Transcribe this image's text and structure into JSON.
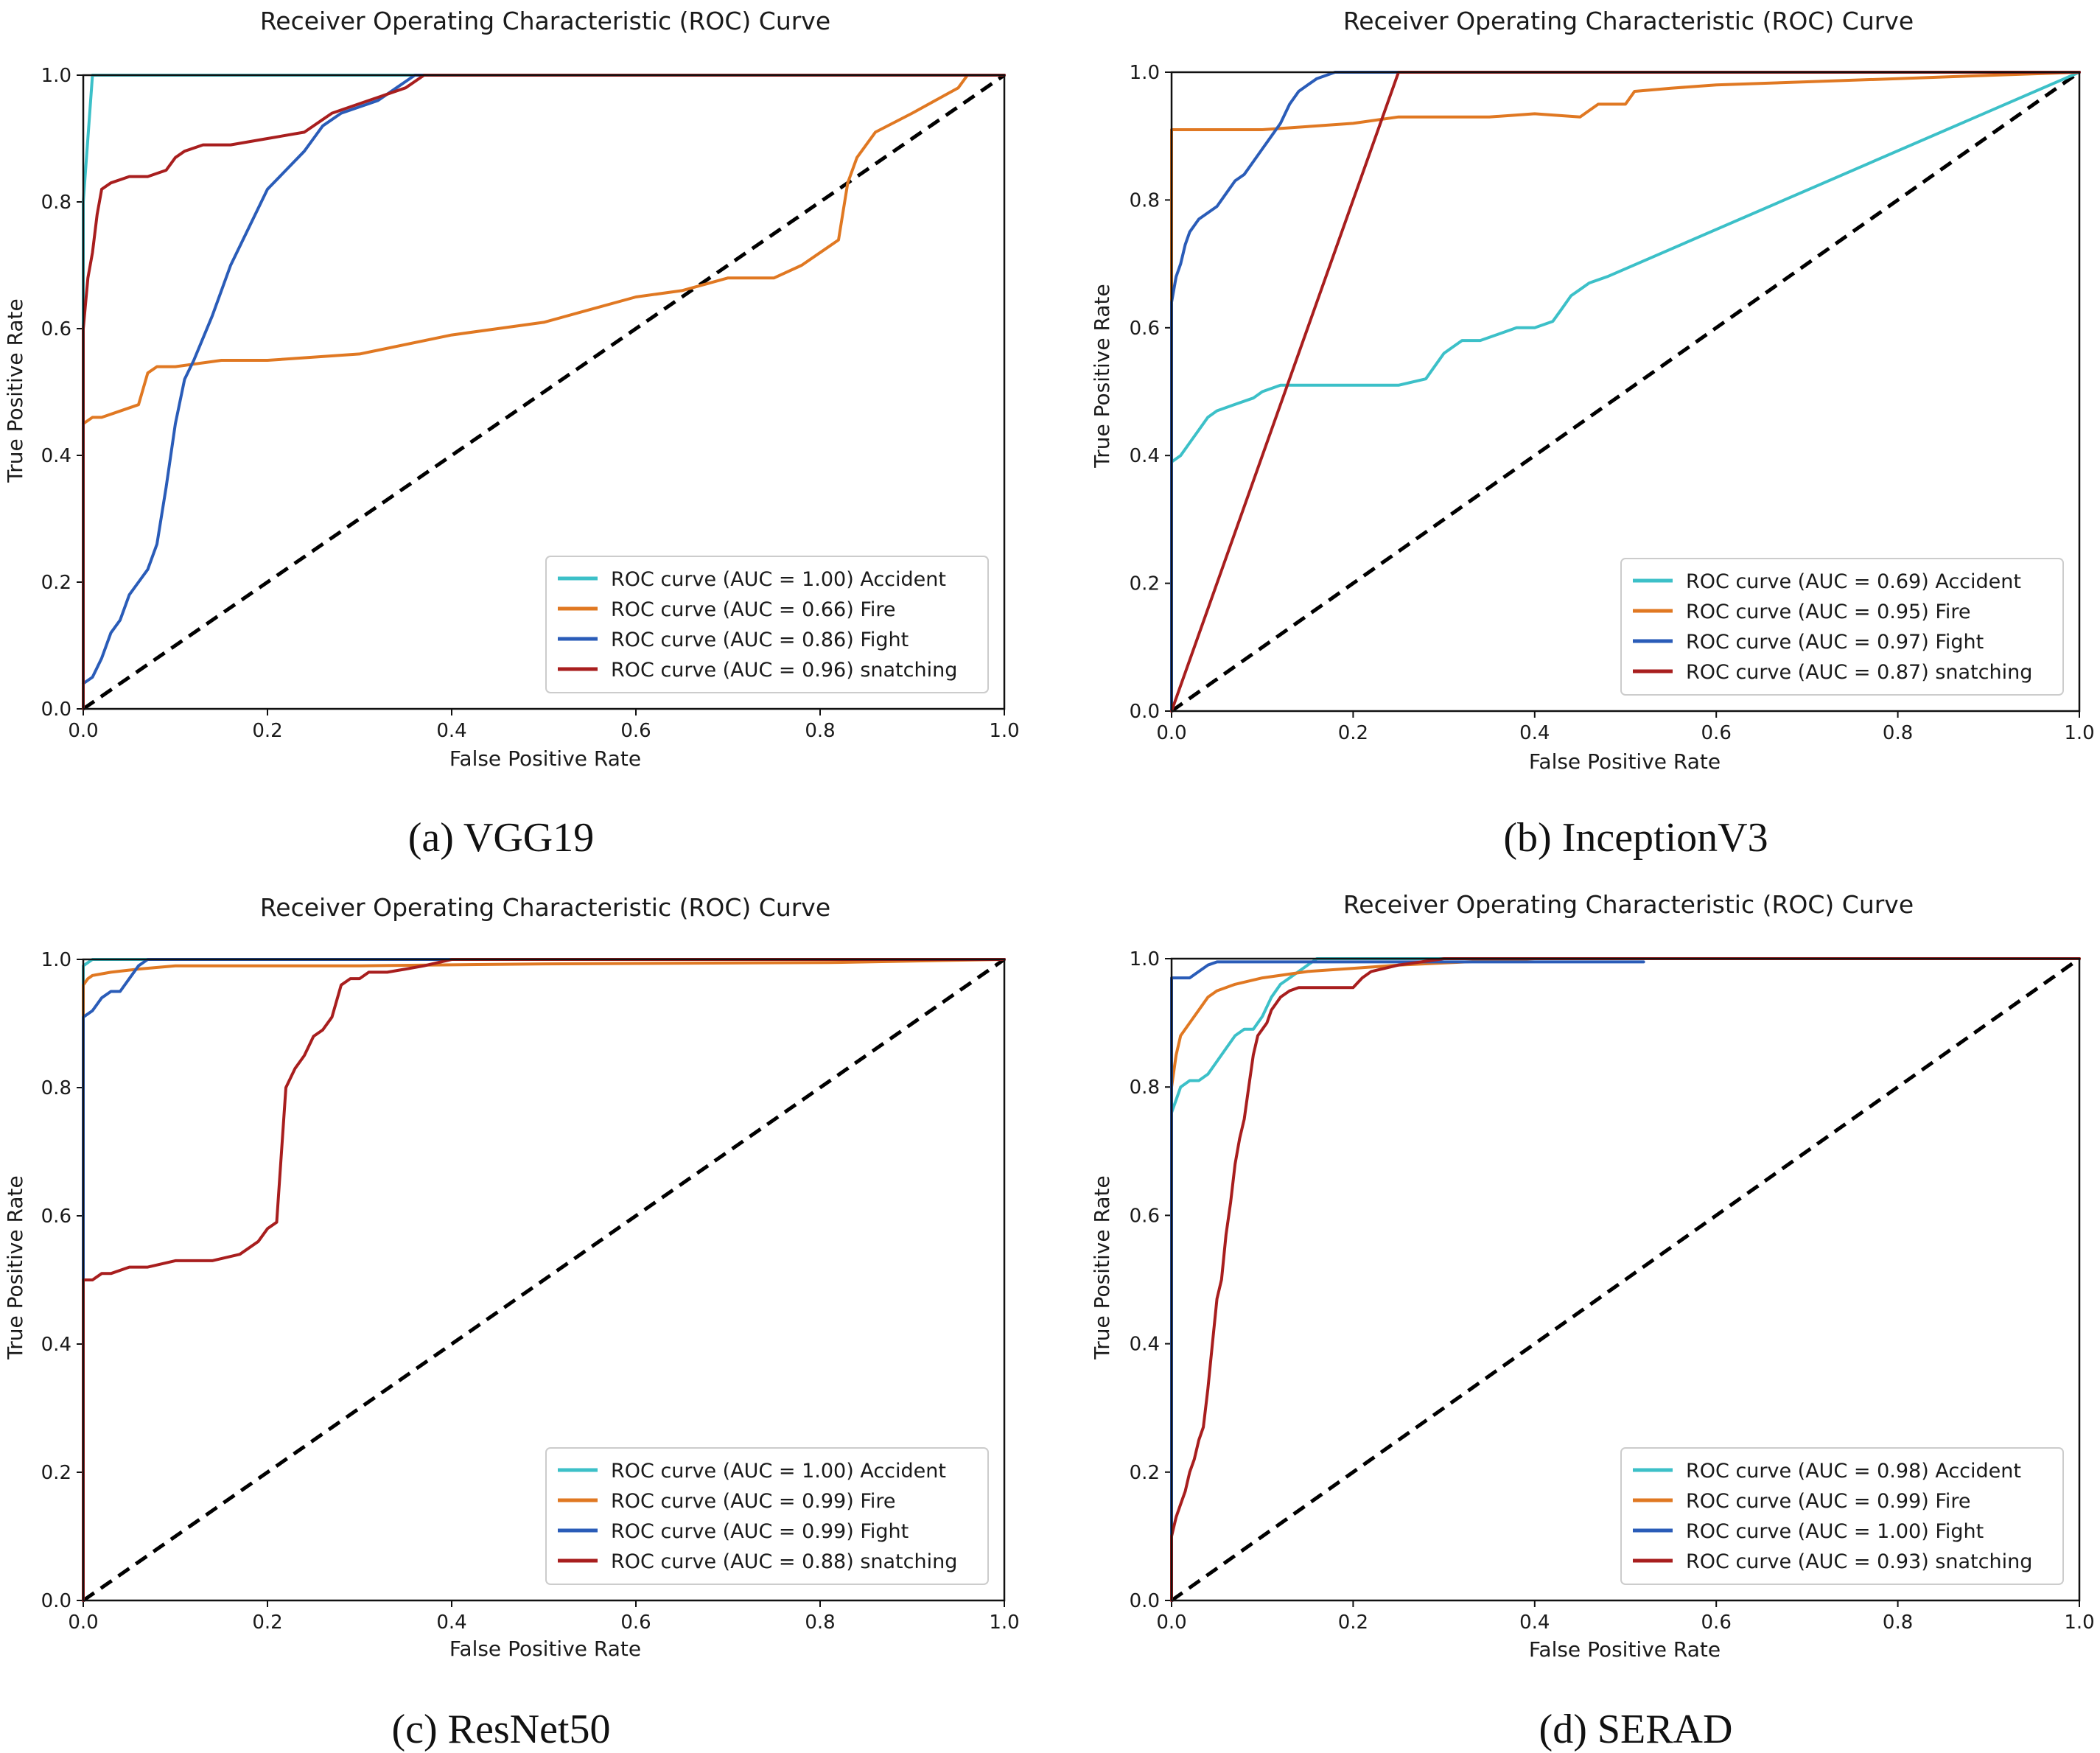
{
  "figure": {
    "background": "#ffffff",
    "series_styles": {
      "Accident": "#3cc0c8",
      "Fire": "#e07822",
      "Fight": "#2a5cb8",
      "snatching": "#a81e1e"
    }
  },
  "chart_data": [
    {
      "id": "a",
      "type": "line",
      "caption": "(a) VGG19",
      "title": "Receiver Operating Characteristic (ROC) Curve",
      "xlabel": "False Positive Rate",
      "ylabel": "True Positive Rate",
      "xlim": [
        0,
        1
      ],
      "ylim": [
        0,
        1
      ],
      "xticks": [
        "0.0",
        "0.2",
        "0.4",
        "0.6",
        "0.8",
        "1.0"
      ],
      "yticks": [
        "0.0",
        "0.2",
        "0.4",
        "0.6",
        "0.8",
        "1.0"
      ],
      "legend_position": "lower-right",
      "series": [
        {
          "name": "Accident",
          "legend": "ROC curve (AUC = 1.00) Accident",
          "auc": 1.0,
          "x": [
            0,
            0,
            0.01,
            0.37,
            1.0
          ],
          "y": [
            0,
            0.8,
            1.0,
            1.0,
            1.0
          ]
        },
        {
          "name": "Fire",
          "legend": "ROC curve (AUC = 0.66) Fire",
          "auc": 0.66,
          "x": [
            0,
            0.01,
            0.02,
            0.04,
            0.06,
            0.07,
            0.08,
            0.1,
            0.15,
            0.2,
            0.3,
            0.4,
            0.45,
            0.5,
            0.55,
            0.6,
            0.65,
            0.7,
            0.75,
            0.78,
            0.8,
            0.82,
            0.83,
            0.84,
            0.86,
            0.9,
            0.95,
            0.96,
            1.0
          ],
          "y": [
            0.45,
            0.46,
            0.46,
            0.47,
            0.48,
            0.53,
            0.54,
            0.54,
            0.55,
            0.55,
            0.56,
            0.59,
            0.6,
            0.61,
            0.63,
            0.65,
            0.66,
            0.68,
            0.68,
            0.7,
            0.72,
            0.74,
            0.83,
            0.87,
            0.91,
            0.94,
            0.98,
            1.0,
            1.0
          ]
        },
        {
          "name": "Fight",
          "legend": "ROC curve (AUC = 0.86) Fight",
          "auc": 0.86,
          "x": [
            0,
            0.01,
            0.02,
            0.03,
            0.04,
            0.05,
            0.06,
            0.07,
            0.08,
            0.09,
            0.1,
            0.11,
            0.12,
            0.14,
            0.16,
            0.18,
            0.2,
            0.22,
            0.24,
            0.25,
            0.26,
            0.28,
            0.3,
            0.32,
            0.34,
            0.35,
            0.36,
            0.38,
            1.0
          ],
          "y": [
            0.04,
            0.05,
            0.08,
            0.12,
            0.14,
            0.18,
            0.2,
            0.22,
            0.26,
            0.35,
            0.45,
            0.52,
            0.55,
            0.62,
            0.7,
            0.76,
            0.82,
            0.85,
            0.88,
            0.9,
            0.92,
            0.94,
            0.95,
            0.96,
            0.98,
            0.99,
            1.0,
            1.0,
            1.0
          ]
        },
        {
          "name": "snatching",
          "legend": "ROC curve (AUC = 0.96) snatching",
          "auc": 0.96,
          "x": [
            0,
            0,
            0.005,
            0.01,
            0.015,
            0.02,
            0.03,
            0.05,
            0.07,
            0.09,
            0.1,
            0.11,
            0.13,
            0.16,
            0.2,
            0.24,
            0.26,
            0.27,
            0.29,
            0.31,
            0.33,
            0.35,
            0.37,
            1.0
          ],
          "y": [
            0,
            0.6,
            0.68,
            0.72,
            0.78,
            0.82,
            0.83,
            0.84,
            0.84,
            0.85,
            0.87,
            0.88,
            0.89,
            0.89,
            0.9,
            0.91,
            0.93,
            0.94,
            0.95,
            0.96,
            0.97,
            0.98,
            1.0,
            1.0
          ]
        }
      ]
    },
    {
      "id": "b",
      "type": "line",
      "caption": "(b) InceptionV3",
      "title": "Receiver Operating Characteristic (ROC) Curve",
      "xlabel": "False Positive Rate",
      "ylabel": "True Positive Rate",
      "xlim": [
        0,
        1
      ],
      "ylim": [
        0,
        1
      ],
      "xticks": [
        "0.0",
        "0.2",
        "0.4",
        "0.6",
        "0.8",
        "1.0"
      ],
      "yticks": [
        "0.0",
        "0.2",
        "0.4",
        "0.6",
        "0.8",
        "1.0"
      ],
      "legend_position": "lower-right",
      "series": [
        {
          "name": "Accident",
          "legend": "ROC curve (AUC = 0.69) Accident",
          "auc": 0.69,
          "x": [
            0,
            0,
            0.01,
            0.02,
            0.03,
            0.04,
            0.05,
            0.07,
            0.09,
            0.1,
            0.12,
            0.16,
            0.2,
            0.25,
            0.28,
            0.29,
            0.3,
            0.31,
            0.32,
            0.34,
            0.36,
            0.38,
            0.4,
            0.42,
            0.43,
            0.44,
            0.45,
            0.46,
            0.48,
            1.0
          ],
          "y": [
            0,
            0.39,
            0.4,
            0.42,
            0.44,
            0.46,
            0.47,
            0.48,
            0.49,
            0.5,
            0.51,
            0.51,
            0.51,
            0.51,
            0.52,
            0.54,
            0.56,
            0.57,
            0.58,
            0.58,
            0.59,
            0.6,
            0.6,
            0.61,
            0.63,
            0.65,
            0.66,
            0.67,
            0.68,
            1.0
          ]
        },
        {
          "name": "Fire",
          "legend": "ROC curve (AUC = 0.95) Fire",
          "auc": 0.95,
          "x": [
            0,
            0,
            0.05,
            0.1,
            0.15,
            0.2,
            0.25,
            0.3,
            0.35,
            0.4,
            0.45,
            0.47,
            0.5,
            0.51,
            0.55,
            0.6,
            0.7,
            0.8,
            0.9,
            1.0
          ],
          "y": [
            0,
            0.91,
            0.91,
            0.91,
            0.915,
            0.92,
            0.93,
            0.93,
            0.93,
            0.935,
            0.93,
            0.95,
            0.95,
            0.97,
            0.975,
            0.98,
            0.985,
            0.99,
            0.995,
            1.0
          ]
        },
        {
          "name": "Fight",
          "legend": "ROC curve (AUC = 0.97) Fight",
          "auc": 0.97,
          "x": [
            0,
            0,
            0.005,
            0.01,
            0.015,
            0.02,
            0.03,
            0.04,
            0.05,
            0.06,
            0.07,
            0.08,
            0.09,
            0.1,
            0.11,
            0.12,
            0.13,
            0.14,
            0.15,
            0.16,
            0.18,
            0.2,
            1.0
          ],
          "y": [
            0,
            0.64,
            0.68,
            0.7,
            0.73,
            0.75,
            0.77,
            0.78,
            0.79,
            0.81,
            0.83,
            0.84,
            0.86,
            0.88,
            0.9,
            0.92,
            0.95,
            0.97,
            0.98,
            0.99,
            1.0,
            1.0,
            1.0
          ]
        },
        {
          "name": "snatching",
          "legend": "ROC curve (AUC = 0.87) snatching",
          "auc": 0.87,
          "x": [
            0,
            0.25,
            1.0
          ],
          "y": [
            0,
            1.0,
            1.0
          ]
        }
      ]
    },
    {
      "id": "c",
      "type": "line",
      "caption": "(c) ResNet50",
      "title": "Receiver Operating Characteristic (ROC) Curve",
      "xlabel": "False Positive Rate",
      "ylabel": "True Positive Rate",
      "xlim": [
        0,
        1
      ],
      "ylim": [
        0,
        1
      ],
      "xticks": [
        "0.0",
        "0.2",
        "0.4",
        "0.6",
        "0.8",
        "1.0"
      ],
      "yticks": [
        "0.0",
        "0.2",
        "0.4",
        "0.6",
        "0.8",
        "1.0"
      ],
      "legend_position": "lower-right",
      "series": [
        {
          "name": "Accident",
          "legend": "ROC curve (AUC = 1.00) Accident",
          "auc": 1.0,
          "x": [
            0,
            0,
            0.01,
            0.42,
            1.0
          ],
          "y": [
            0,
            0.99,
            1.0,
            1.0,
            1.0
          ]
        },
        {
          "name": "Fire",
          "legend": "ROC curve (AUC = 0.99) Fire",
          "auc": 0.99,
          "x": [
            0,
            0,
            0.005,
            0.01,
            0.03,
            0.06,
            0.1,
            0.2,
            0.3,
            0.5,
            0.81,
            1.0
          ],
          "y": [
            0,
            0.96,
            0.97,
            0.975,
            0.98,
            0.985,
            0.99,
            0.99,
            0.99,
            0.993,
            0.995,
            1.0
          ]
        },
        {
          "name": "Fight",
          "legend": "ROC curve (AUC = 0.99) Fight",
          "auc": 0.99,
          "x": [
            0,
            0,
            0.01,
            0.02,
            0.03,
            0.04,
            0.05,
            0.06,
            0.07,
            1.0
          ],
          "y": [
            0,
            0.91,
            0.92,
            0.94,
            0.95,
            0.95,
            0.97,
            0.99,
            1.0,
            1.0
          ]
        },
        {
          "name": "snatching",
          "legend": "ROC curve (AUC = 0.88) snatching",
          "auc": 0.88,
          "x": [
            0,
            0,
            0.01,
            0.02,
            0.03,
            0.05,
            0.07,
            0.1,
            0.14,
            0.17,
            0.19,
            0.2,
            0.21,
            0.22,
            0.23,
            0.24,
            0.25,
            0.26,
            0.27,
            0.28,
            0.29,
            0.3,
            0.31,
            0.33,
            0.35,
            0.37,
            0.4,
            1.0
          ],
          "y": [
            0,
            0.5,
            0.5,
            0.51,
            0.51,
            0.52,
            0.52,
            0.53,
            0.53,
            0.54,
            0.56,
            0.58,
            0.59,
            0.8,
            0.83,
            0.85,
            0.88,
            0.89,
            0.91,
            0.96,
            0.97,
            0.97,
            0.98,
            0.98,
            0.985,
            0.99,
            1.0,
            1.0
          ]
        }
      ]
    },
    {
      "id": "d",
      "type": "line",
      "caption": "(d) SERAD",
      "title": "Receiver Operating Characteristic (ROC) Curve",
      "xlabel": "False Positive Rate",
      "ylabel": "True Positive Rate",
      "xlim": [
        0,
        1
      ],
      "ylim": [
        0,
        1
      ],
      "xticks": [
        "0.0",
        "0.2",
        "0.4",
        "0.6",
        "0.8",
        "1.0"
      ],
      "yticks": [
        "0.0",
        "0.2",
        "0.4",
        "0.6",
        "0.8",
        "1.0"
      ],
      "legend_position": "lower-right",
      "series": [
        {
          "name": "Accident",
          "legend": "ROC curve (AUC = 0.98) Accident",
          "auc": 0.98,
          "x": [
            0,
            0,
            0.005,
            0.01,
            0.02,
            0.03,
            0.04,
            0.05,
            0.06,
            0.07,
            0.08,
            0.09,
            0.1,
            0.11,
            0.12,
            0.13,
            0.14,
            0.16,
            0.2,
            1.0
          ],
          "y": [
            0,
            0.76,
            0.78,
            0.8,
            0.81,
            0.81,
            0.82,
            0.84,
            0.86,
            0.88,
            0.89,
            0.89,
            0.91,
            0.94,
            0.96,
            0.97,
            0.98,
            1.0,
            1.0,
            1.0
          ]
        },
        {
          "name": "Fire",
          "legend": "ROC curve (AUC = 0.99) Fire",
          "auc": 0.99,
          "x": [
            0,
            0,
            0.005,
            0.01,
            0.02,
            0.03,
            0.04,
            0.05,
            0.07,
            0.1,
            0.15,
            0.2,
            0.25,
            0.4,
            1.0
          ],
          "y": [
            0,
            0.8,
            0.85,
            0.88,
            0.9,
            0.92,
            0.94,
            0.95,
            0.96,
            0.97,
            0.98,
            0.985,
            0.99,
            1.0,
            1.0
          ]
        },
        {
          "name": "Fight",
          "legend": "ROC curve (AUC = 1.00) Fight",
          "auc": 1.0,
          "x": [
            0,
            0,
            0.02,
            0.03,
            0.04,
            0.05,
            0.1,
            0.2,
            0.35,
            0.52
          ],
          "y": [
            0,
            0.97,
            0.97,
            0.98,
            0.99,
            0.995,
            0.995,
            0.995,
            0.995,
            0.995
          ]
        },
        {
          "name": "snatching",
          "legend": "ROC curve (AUC = 0.93) snatching",
          "auc": 0.93,
          "x": [
            0,
            0,
            0.005,
            0.01,
            0.015,
            0.02,
            0.025,
            0.03,
            0.035,
            0.04,
            0.045,
            0.05,
            0.055,
            0.06,
            0.065,
            0.07,
            0.075,
            0.08,
            0.085,
            0.09,
            0.095,
            0.1,
            0.105,
            0.11,
            0.115,
            0.12,
            0.13,
            0.14,
            0.2,
            0.21,
            0.22,
            0.25,
            0.3,
            1.0
          ],
          "y": [
            0,
            0.1,
            0.13,
            0.15,
            0.17,
            0.2,
            0.22,
            0.25,
            0.27,
            0.33,
            0.4,
            0.47,
            0.5,
            0.57,
            0.62,
            0.68,
            0.72,
            0.75,
            0.8,
            0.85,
            0.88,
            0.89,
            0.9,
            0.92,
            0.93,
            0.94,
            0.95,
            0.955,
            0.955,
            0.97,
            0.98,
            0.99,
            1.0,
            1.0
          ]
        }
      ]
    }
  ]
}
